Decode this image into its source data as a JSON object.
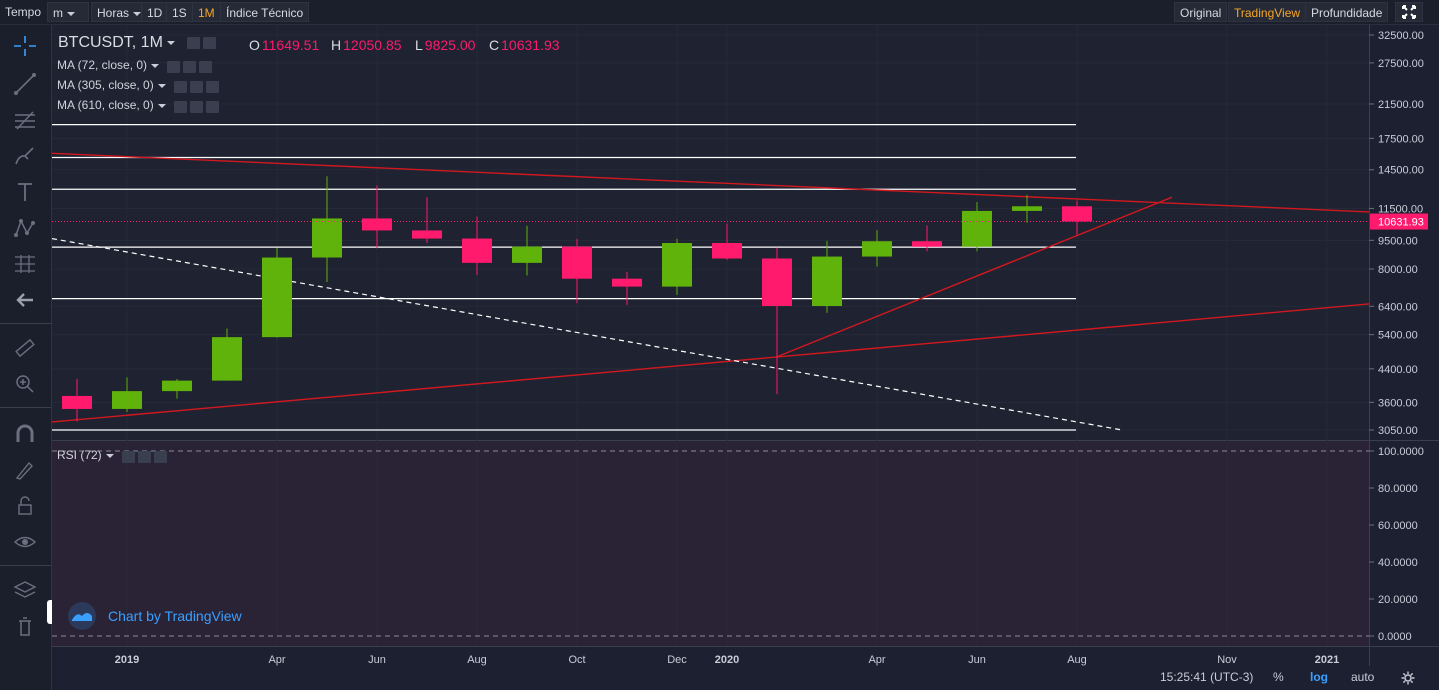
{
  "toolbar": {
    "tempo_label": "Tempo",
    "interval_select": "m",
    "horas_label": "Horas",
    "intervals": [
      "1D",
      "1S",
      "1M"
    ],
    "active_interval": "1M",
    "indicator_label": "Índice Técnico",
    "view_original": "Original",
    "view_tradingview": "TradingView",
    "view_depth": "Profundidade"
  },
  "legend": {
    "symbol": "BTCUSDT, 1M",
    "open_key": "O",
    "open": "11649.51",
    "high_key": "H",
    "high": "12050.85",
    "low_key": "L",
    "low": "9825.00",
    "close_key": "C",
    "close": "10631.93",
    "ma_studies": [
      "MA (72, close, 0)",
      "MA (305, close, 0)",
      "MA (610, close, 0)"
    ],
    "rsi_study": "RSI (72)"
  },
  "watermark": "Chart by TradingView",
  "status": {
    "time": "15:25:41",
    "tz": "(UTC-3)",
    "percent": "%",
    "log": "log",
    "auto": "auto"
  },
  "colors": {
    "up": "#5fb30a",
    "down": "#ff1a6e",
    "trend": "#d2181f",
    "level": "#ffffff",
    "price_tag_bg": "#ff1a6e",
    "rsi_bg": "#2a2235"
  },
  "chart_data": {
    "type": "candlestick",
    "y_scale": "log",
    "price_axis_ticks": [
      "32500.00",
      "27500.00",
      "21500.00",
      "17500.00",
      "14500.00",
      "11500.00",
      "9500.00",
      "8000.00",
      "6400.00",
      "5400.00",
      "4400.00",
      "3600.00",
      "3050.00"
    ],
    "price_axis_values": [
      32500,
      27500,
      21500,
      17500,
      14500,
      11500,
      9500,
      8000,
      6400,
      5400,
      4400,
      3600,
      3050
    ],
    "rsi_axis_ticks": [
      "100.0000",
      "80.0000",
      "60.0000",
      "40.0000",
      "20.0000",
      "0.0000"
    ],
    "rsi_axis_values": [
      100,
      80,
      60,
      40,
      20,
      0
    ],
    "time_axis_ticks": [
      {
        "label": "2019",
        "t": 0
      },
      {
        "label": "Apr",
        "t": 3
      },
      {
        "label": "Jun",
        "t": 5
      },
      {
        "label": "Aug",
        "t": 7
      },
      {
        "label": "Oct",
        "t": 9
      },
      {
        "label": "Dec",
        "t": 11
      },
      {
        "label": "2020",
        "t": 12
      },
      {
        "label": "Apr",
        "t": 15
      },
      {
        "label": "Jun",
        "t": 17
      },
      {
        "label": "Aug",
        "t": 19
      },
      {
        "label": "Nov",
        "t": 22
      },
      {
        "label": "2021",
        "t": 24
      }
    ],
    "candles": [
      {
        "t": -1,
        "o": 3740,
        "h": 4140,
        "l": 3210,
        "c": 3460
      },
      {
        "t": 0,
        "o": 3460,
        "h": 4180,
        "l": 3400,
        "c": 3850
      },
      {
        "t": 1,
        "o": 3850,
        "h": 4140,
        "l": 3680,
        "c": 4100
      },
      {
        "t": 2,
        "o": 4100,
        "h": 5600,
        "l": 4100,
        "c": 5320
      },
      {
        "t": 3,
        "o": 5320,
        "h": 9100,
        "l": 5300,
        "c": 8570
      },
      {
        "t": 4,
        "o": 8570,
        "h": 13950,
        "l": 7400,
        "c": 10830
      },
      {
        "t": 5,
        "o": 10830,
        "h": 13200,
        "l": 9050,
        "c": 10080
      },
      {
        "t": 6,
        "o": 10080,
        "h": 12300,
        "l": 9350,
        "c": 9600
      },
      {
        "t": 7,
        "o": 9600,
        "h": 10950,
        "l": 7720,
        "c": 8300
      },
      {
        "t": 8,
        "o": 8300,
        "h": 10370,
        "l": 7700,
        "c": 9150
      },
      {
        "t": 9,
        "o": 9150,
        "h": 9580,
        "l": 6520,
        "c": 7550
      },
      {
        "t": 10,
        "o": 7550,
        "h": 7870,
        "l": 6450,
        "c": 7200
      },
      {
        "t": 11,
        "o": 7200,
        "h": 9580,
        "l": 6850,
        "c": 9350
      },
      {
        "t": 12,
        "o": 9350,
        "h": 10500,
        "l": 8450,
        "c": 8520
      },
      {
        "t": 13,
        "o": 8520,
        "h": 9100,
        "l": 3780,
        "c": 6410
      },
      {
        "t": 14,
        "o": 6410,
        "h": 9470,
        "l": 6150,
        "c": 8620
      },
      {
        "t": 15,
        "o": 8620,
        "h": 10100,
        "l": 8120,
        "c": 9450
      },
      {
        "t": 16,
        "o": 9450,
        "h": 10380,
        "l": 8900,
        "c": 9140
      },
      {
        "t": 17,
        "o": 9140,
        "h": 11950,
        "l": 8900,
        "c": 11330
      },
      {
        "t": 18,
        "o": 11330,
        "h": 12470,
        "l": 10550,
        "c": 11650
      },
      {
        "t": 19,
        "o": 11649.51,
        "h": 12050.85,
        "l": 9825.0,
        "c": 10631.93
      }
    ],
    "last_price_tag": "10631.93",
    "last_price": 10631.93,
    "horizontal_levels": [
      19000,
      15600,
      12900,
      9120,
      6700,
      3050
    ],
    "trendlines": [
      {
        "style": "solid",
        "color": "trend",
        "p1": {
          "t": -1.5,
          "v": 16000
        },
        "p2": {
          "t": 24.9,
          "v": 11250
        }
      },
      {
        "style": "solid",
        "color": "trend",
        "p1": {
          "t": -1.5,
          "v": 3200
        },
        "p2": {
          "t": 24.9,
          "v": 6500
        }
      },
      {
        "style": "solid",
        "color": "trend",
        "p1": {
          "t": 13.0,
          "v": 4730
        },
        "p2": {
          "t": 20.9,
          "v": 12300
        }
      },
      {
        "style": "dashed",
        "color": "level",
        "p1": {
          "t": -1.5,
          "v": 9600
        },
        "p2": {
          "t": 19.9,
          "v": 3050
        }
      }
    ],
    "rsi_dashed_levels": [
      100,
      0
    ]
  }
}
